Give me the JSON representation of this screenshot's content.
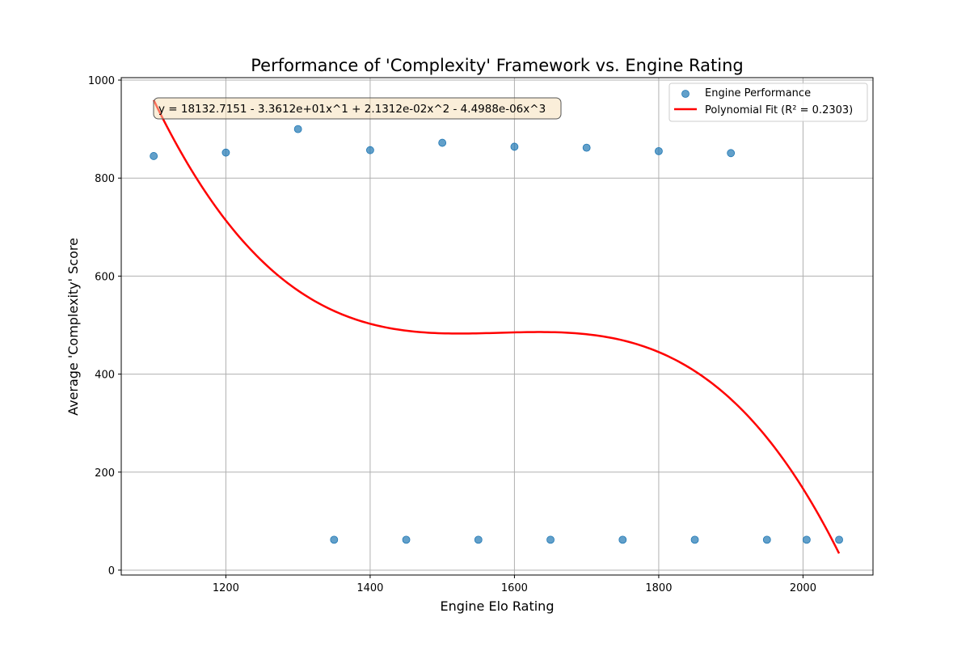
{
  "chart_data": {
    "type": "scatter",
    "title": "Performance of 'Complexity' Framework vs. Engine Rating",
    "xlabel": "Engine Elo Rating",
    "ylabel": "Average 'Complexity' Score",
    "xlim": [
      1055,
      2097
    ],
    "ylim": [
      -10,
      1005
    ],
    "xticks": [
      1200,
      1400,
      1600,
      1800,
      2000
    ],
    "yticks": [
      0,
      200,
      400,
      600,
      800,
      1000
    ],
    "grid": true,
    "legend_position": "top-right",
    "series": [
      {
        "name": "Engine Performance",
        "kind": "scatter",
        "color": "#1f77b4",
        "x": [
          1100,
          1200,
          1300,
          1350,
          1400,
          1450,
          1500,
          1550,
          1600,
          1650,
          1700,
          1750,
          1800,
          1850,
          1900,
          1950,
          2005,
          2050
        ],
        "y": [
          845,
          852,
          900,
          62,
          857,
          62,
          872,
          62,
          864,
          62,
          862,
          62,
          855,
          62,
          851,
          62,
          62,
          62
        ]
      },
      {
        "name": "Polynomial Fit (R² = 0.2303)",
        "kind": "line",
        "color": "#ff0000",
        "x_range": [
          1100,
          2050
        ],
        "coefficients": [
          18132.7151,
          -33.612,
          0.021312,
          -4.4988e-06
        ]
      }
    ],
    "annotation": "y = 18132.7151 - 3.3612e+01x^1 + 2.1312e-02x^2 - 4.4988e-06x^3"
  }
}
